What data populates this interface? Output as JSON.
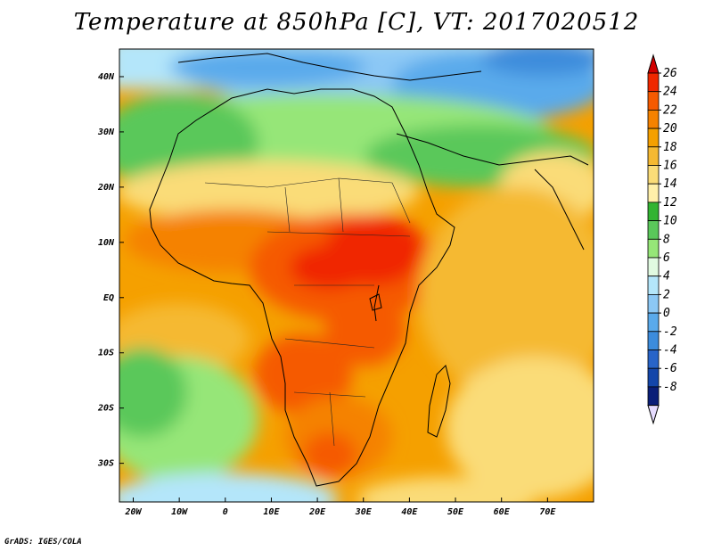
{
  "title": "Temperature at 850hPa [C], VT: 2017020512",
  "footer": "GrADS: IGES/COLA",
  "map": {
    "lon_range": [
      -23,
      80
    ],
    "lat_range": [
      -37,
      45
    ],
    "lat_ticks": [
      {
        "value": 40,
        "label": "40N"
      },
      {
        "value": 30,
        "label": "30N"
      },
      {
        "value": 20,
        "label": "20N"
      },
      {
        "value": 10,
        "label": "10N"
      },
      {
        "value": 0,
        "label": "EQ"
      },
      {
        "value": -10,
        "label": "10S"
      },
      {
        "value": -20,
        "label": "20S"
      },
      {
        "value": -30,
        "label": "30S"
      }
    ],
    "lon_ticks": [
      {
        "value": -20,
        "label": "20W"
      },
      {
        "value": -10,
        "label": "10W"
      },
      {
        "value": 0,
        "label": "0"
      },
      {
        "value": 10,
        "label": "10E"
      },
      {
        "value": 20,
        "label": "20E"
      },
      {
        "value": 30,
        "label": "30E"
      },
      {
        "value": 40,
        "label": "40E"
      },
      {
        "value": 50,
        "label": "50E"
      },
      {
        "value": 60,
        "label": "60E"
      },
      {
        "value": 70,
        "label": "70E"
      }
    ]
  },
  "colorbar": {
    "labels": [
      "26",
      "24",
      "22",
      "20",
      "18",
      "16",
      "14",
      "12",
      "10",
      "8",
      "6",
      "4",
      "2",
      "0",
      "-2",
      "-4",
      "-6",
      "-8"
    ],
    "top_cap_color": "#d20000",
    "bottom_cap_color": "#e6dcff",
    "colors": [
      "#f02800",
      "#f55a00",
      "#f58200",
      "#f5a000",
      "#f5b932",
      "#fadc78",
      "#fff0aa",
      "#32b432",
      "#5ac85a",
      "#96e678",
      "#e1fae1",
      "#b4e6fa",
      "#8cc8f5",
      "#5aaaeb",
      "#3c8cdc",
      "#2864c8",
      "#1446aa",
      "#0a1e78"
    ]
  }
}
